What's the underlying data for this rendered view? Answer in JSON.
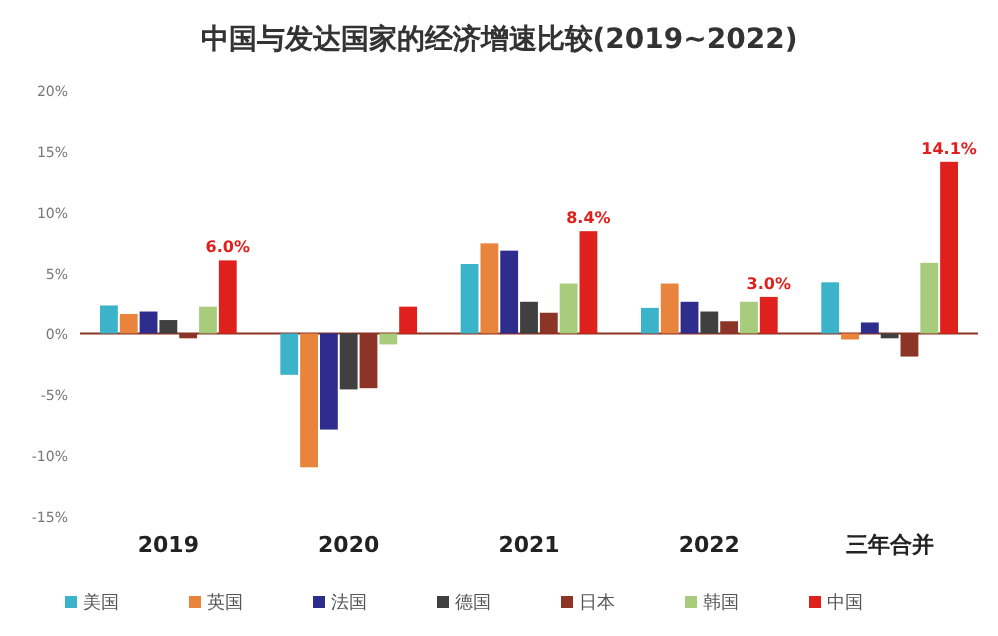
{
  "chart_data": {
    "type": "bar",
    "title": "中国与发达国家的经济增速比较(2019~2022)",
    "categories": [
      "2019",
      "2020",
      "2021",
      "2022",
      "三年合并"
    ],
    "series": [
      {
        "name": "美国",
        "color": "#3bb3c9",
        "values": [
          2.3,
          -3.4,
          5.7,
          2.1,
          4.2
        ]
      },
      {
        "name": "英国",
        "color": "#e8843c",
        "values": [
          1.6,
          -11.0,
          7.4,
          4.1,
          -0.5
        ]
      },
      {
        "name": "法国",
        "color": "#2e2c8c",
        "values": [
          1.8,
          -7.9,
          6.8,
          2.6,
          0.9
        ]
      },
      {
        "name": "德国",
        "color": "#404040",
        "values": [
          1.1,
          -4.6,
          2.6,
          1.8,
          -0.4
        ]
      },
      {
        "name": "日本",
        "color": "#8c3426",
        "values": [
          -0.4,
          -4.5,
          1.7,
          1.0,
          -1.9
        ]
      },
      {
        "name": "韩国",
        "color": "#a6cc7c",
        "values": [
          2.2,
          -0.9,
          4.1,
          2.6,
          5.8
        ]
      },
      {
        "name": "中国",
        "color": "#e0201c",
        "values": [
          6.0,
          2.2,
          8.4,
          3.0,
          14.1
        ],
        "value_labels": [
          "6.0%",
          null,
          "8.4%",
          "3.0%",
          "14.1%"
        ]
      }
    ],
    "ylim": [
      -15,
      20
    ],
    "yticks": [
      {
        "value": -15,
        "label": "-15%"
      },
      {
        "value": -10,
        "label": "-10%"
      },
      {
        "value": -5,
        "label": "-5%"
      },
      {
        "value": 0,
        "label": "0%"
      },
      {
        "value": 5,
        "label": "5%"
      },
      {
        "value": 10,
        "label": "10%"
      },
      {
        "value": 15,
        "label": "15%"
      },
      {
        "value": 20,
        "label": "20%"
      }
    ],
    "ref_lines": [
      {
        "axis": "y",
        "value": 0,
        "color": "#8c3426"
      }
    ],
    "grid": false,
    "legend": "bottom"
  }
}
